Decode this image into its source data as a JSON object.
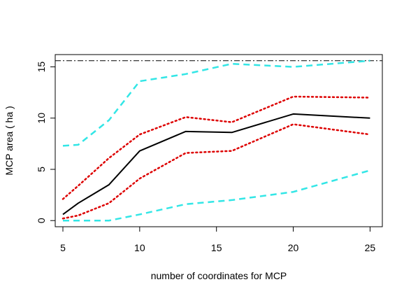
{
  "chart_data": {
    "type": "line",
    "title": "",
    "xlabel": "number of coordinates for MCP",
    "ylabel": "MCP area ( ha )",
    "xlim": [
      4.5,
      25.8
    ],
    "ylim": [
      -0.6,
      16.2
    ],
    "xticks": [
      5,
      10,
      15,
      20,
      25
    ],
    "yticks": [
      0,
      5,
      10,
      15
    ],
    "grid": false,
    "reference_line": {
      "y": 15.6,
      "style": "dotdash",
      "color": "#000000"
    },
    "x": [
      5,
      6,
      8,
      10,
      13,
      16,
      20,
      25
    ],
    "series": [
      {
        "values": [
          7.3,
          7.4,
          9.8,
          13.6,
          14.3,
          15.3,
          15.0,
          15.6
        ],
        "color": "#33e6e6",
        "style": "dashed"
      },
      {
        "values": [
          2.1,
          3.4,
          6.1,
          8.4,
          10.1,
          9.6,
          12.1,
          12.0
        ],
        "color": "#dd0000",
        "style": "dotted"
      },
      {
        "values": [
          0.6,
          1.7,
          3.5,
          6.8,
          8.7,
          8.6,
          10.4,
          10.0
        ],
        "color": "#000000",
        "style": "solid"
      },
      {
        "values": [
          0.2,
          0.5,
          1.7,
          4.1,
          6.6,
          6.8,
          9.4,
          8.4
        ],
        "color": "#dd0000",
        "style": "dotted"
      },
      {
        "values": [
          0.0,
          0.0,
          0.0,
          0.6,
          1.6,
          2.0,
          2.8,
          4.9
        ],
        "color": "#33e6e6",
        "style": "dashed"
      }
    ]
  }
}
